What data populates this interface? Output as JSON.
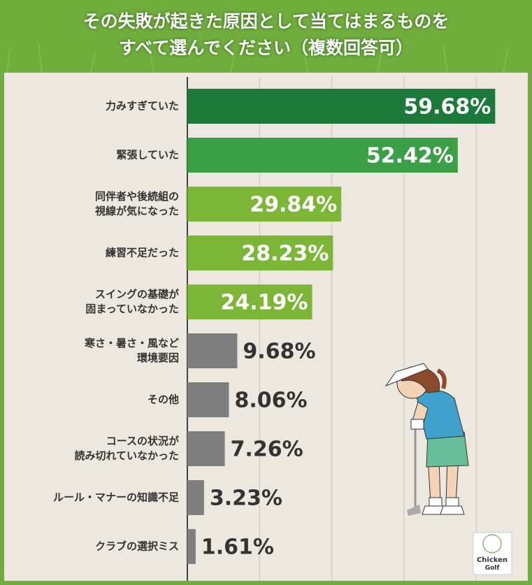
{
  "chart_data": {
    "type": "bar",
    "orientation": "horizontal",
    "title": "その失敗が起きた原因として当てはまるものを\nすべて選んでください（複数回答可）",
    "categories": [
      "力みすぎていた",
      "緊張していた",
      "同伴者や後続組の\n視線が気になった",
      "練習不足だった",
      "スイングの基礎が\n固まっていなかった",
      "寒さ・暑さ・風など\n環境要因",
      "その他",
      "コースの状況が\n読み切れていなかった",
      "ルール・マナーの知識不足",
      "クラブの選択ミス"
    ],
    "values": [
      59.68,
      52.42,
      29.84,
      28.23,
      24.19,
      9.68,
      8.06,
      7.26,
      3.23,
      1.61
    ],
    "value_labels": [
      "59.68%",
      "52.42%",
      "29.84%",
      "28.23%",
      "24.19%",
      "9.68%",
      "8.06%",
      "7.26%",
      "3.23%",
      "1.61%"
    ],
    "colors": [
      "#1b7a3a",
      "#3b9f45",
      "#7bb635",
      "#7bb635",
      "#7bb635",
      "#7f7f7f",
      "#7f7f7f",
      "#7f7f7f",
      "#7f7f7f",
      "#7f7f7f"
    ],
    "xlim": [
      0,
      66
    ],
    "xticks": [
      14,
      28,
      42,
      56
    ],
    "grid": true
  },
  "logo": {
    "line1": "Chicken",
    "line2": "Golf"
  }
}
